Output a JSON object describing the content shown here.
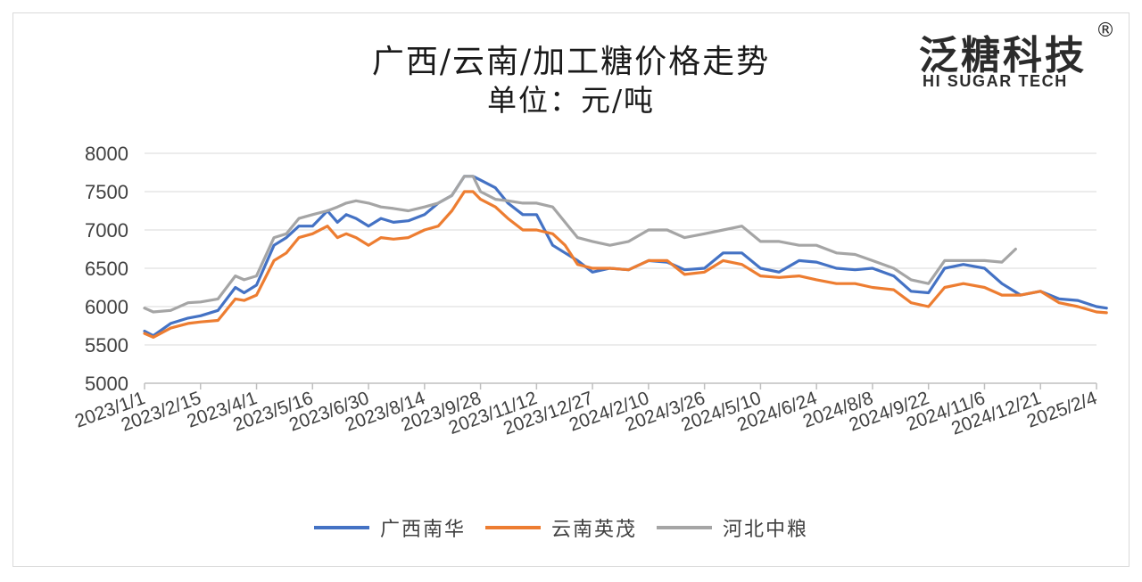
{
  "chart_data": {
    "type": "line",
    "title": "广西/云南/加工糖价格走势",
    "subtitle": "单位：元/吨",
    "xlabel": "",
    "ylabel": "",
    "ylim": [
      5000,
      8000
    ],
    "yticks": [
      5000,
      5500,
      6000,
      6500,
      7000,
      7500,
      8000
    ],
    "x_tick_labels": [
      "2023/1/1",
      "2023/2/15",
      "2023/4/1",
      "2023/5/16",
      "2023/6/30",
      "2023/8/14",
      "2023/9/28",
      "2023/11/12",
      "2023/12/27",
      "2024/2/10",
      "2024/3/26",
      "2024/5/10",
      "2024/6/24",
      "2024/8/8",
      "2024/9/22",
      "2024/11/6",
      "2024/12/21",
      "2025/2/4"
    ],
    "grid": "horizontal",
    "legend_position": "bottom",
    "series": [
      {
        "name": "广西南华",
        "color": "#4472c4",
        "x": [
          "2023/1/1",
          "2023/1/8",
          "2023/1/22",
          "2023/2/5",
          "2023/2/15",
          "2023/3/1",
          "2023/3/15",
          "2023/3/22",
          "2023/4/1",
          "2023/4/15",
          "2023/4/25",
          "2023/5/5",
          "2023/5/16",
          "2023/5/28",
          "2023/6/5",
          "2023/6/12",
          "2023/6/20",
          "2023/6/30",
          "2023/7/10",
          "2023/7/20",
          "2023/8/1",
          "2023/8/14",
          "2023/8/25",
          "2023/9/5",
          "2023/9/15",
          "2023/9/22",
          "2023/9/28",
          "2023/10/10",
          "2023/10/20",
          "2023/11/1",
          "2023/11/12",
          "2023/11/25",
          "2023/12/5",
          "2023/12/15",
          "2023/12/27",
          "2024/1/10",
          "2024/1/25",
          "2024/2/10",
          "2024/2/25",
          "2024/3/10",
          "2024/3/26",
          "2024/4/10",
          "2024/4/25",
          "2024/5/10",
          "2024/5/25",
          "2024/6/10",
          "2024/6/24",
          "2024/7/10",
          "2024/7/25",
          "2024/8/8",
          "2024/8/25",
          "2024/9/8",
          "2024/9/22",
          "2024/10/5",
          "2024/10/20",
          "2024/11/6",
          "2024/11/20",
          "2024/12/5",
          "2024/12/21",
          "2025/1/5",
          "2025/1/20",
          "2025/2/4",
          "2025/2/12"
        ],
        "values": [
          5680,
          5620,
          5780,
          5850,
          5880,
          5950,
          6250,
          6180,
          6280,
          6800,
          6900,
          7050,
          7050,
          7250,
          7100,
          7200,
          7150,
          7050,
          7150,
          7100,
          7120,
          7200,
          7350,
          7450,
          7700,
          7700,
          7650,
          7550,
          7350,
          7200,
          7200,
          6800,
          6700,
          6600,
          6450,
          6500,
          6480,
          6600,
          6580,
          6480,
          6500,
          6700,
          6700,
          6500,
          6450,
          6600,
          6580,
          6500,
          6480,
          6500,
          6400,
          6200,
          6180,
          6500,
          6550,
          6500,
          6300,
          6150,
          6200,
          6100,
          6080,
          6000,
          5980
        ]
      },
      {
        "name": "云南英茂",
        "color": "#ed7d31",
        "x": [
          "2023/1/1",
          "2023/1/8",
          "2023/1/22",
          "2023/2/5",
          "2023/2/15",
          "2023/3/1",
          "2023/3/15",
          "2023/3/22",
          "2023/4/1",
          "2023/4/15",
          "2023/4/25",
          "2023/5/5",
          "2023/5/16",
          "2023/5/28",
          "2023/6/5",
          "2023/6/12",
          "2023/6/20",
          "2023/6/30",
          "2023/7/10",
          "2023/7/20",
          "2023/8/1",
          "2023/8/14",
          "2023/8/25",
          "2023/9/5",
          "2023/9/15",
          "2023/9/22",
          "2023/9/28",
          "2023/10/10",
          "2023/10/20",
          "2023/11/1",
          "2023/11/12",
          "2023/11/25",
          "2023/12/5",
          "2023/12/15",
          "2023/12/27",
          "2024/1/10",
          "2024/1/25",
          "2024/2/10",
          "2024/2/25",
          "2024/3/10",
          "2024/3/26",
          "2024/4/10",
          "2024/4/25",
          "2024/5/10",
          "2024/5/25",
          "2024/6/10",
          "2024/6/24",
          "2024/7/10",
          "2024/7/25",
          "2024/8/8",
          "2024/8/25",
          "2024/9/8",
          "2024/9/22",
          "2024/10/5",
          "2024/10/20",
          "2024/11/6",
          "2024/11/20",
          "2024/12/5",
          "2024/12/21",
          "2025/1/5",
          "2025/1/20",
          "2025/2/4",
          "2025/2/12"
        ],
        "values": [
          5650,
          5600,
          5720,
          5780,
          5800,
          5820,
          6100,
          6080,
          6150,
          6600,
          6700,
          6900,
          6950,
          7050,
          6900,
          6950,
          6900,
          6800,
          6900,
          6880,
          6900,
          7000,
          7050,
          7250,
          7500,
          7500,
          7400,
          7300,
          7150,
          7000,
          7000,
          6950,
          6800,
          6550,
          6500,
          6500,
          6480,
          6600,
          6600,
          6420,
          6450,
          6600,
          6550,
          6400,
          6380,
          6400,
          6350,
          6300,
          6300,
          6250,
          6220,
          6050,
          6000,
          6250,
          6300,
          6250,
          6150,
          6150,
          6200,
          6050,
          6000,
          5930,
          5920
        ]
      },
      {
        "name": "河北中粮",
        "color": "#a5a5a5",
        "x": [
          "2023/1/1",
          "2023/1/8",
          "2023/1/22",
          "2023/2/5",
          "2023/2/15",
          "2023/3/1",
          "2023/3/15",
          "2023/3/22",
          "2023/4/1",
          "2023/4/15",
          "2023/4/25",
          "2023/5/5",
          "2023/5/16",
          "2023/5/28",
          "2023/6/5",
          "2023/6/12",
          "2023/6/20",
          "2023/6/30",
          "2023/7/10",
          "2023/7/20",
          "2023/8/1",
          "2023/8/14",
          "2023/8/25",
          "2023/9/5",
          "2023/9/15",
          "2023/9/22",
          "2023/9/28",
          "2023/10/10",
          "2023/10/20",
          "2023/11/1",
          "2023/11/12",
          "2023/11/25",
          "2023/12/5",
          "2023/12/15",
          "2023/12/27",
          "2024/1/10",
          "2024/1/25",
          "2024/2/10",
          "2024/2/25",
          "2024/3/10",
          "2024/3/26",
          "2024/4/10",
          "2024/4/25",
          "2024/5/10",
          "2024/5/25",
          "2024/6/10",
          "2024/6/24",
          "2024/7/10",
          "2024/7/25",
          "2024/8/8",
          "2024/8/25",
          "2024/9/8",
          "2024/9/22",
          "2024/10/5",
          "2024/10/20",
          "2024/11/6",
          "2024/11/20",
          "2024/12/1"
        ],
        "values": [
          5980,
          5930,
          5950,
          6050,
          6060,
          6100,
          6400,
          6350,
          6400,
          6900,
          6950,
          7150,
          7200,
          7250,
          7300,
          7350,
          7380,
          7350,
          7300,
          7280,
          7250,
          7300,
          7350,
          7450,
          7700,
          7700,
          7500,
          7400,
          7380,
          7350,
          7350,
          7300,
          7100,
          6900,
          6850,
          6800,
          6850,
          7000,
          7000,
          6900,
          6950,
          7000,
          7050,
          6850,
          6850,
          6800,
          6800,
          6700,
          6680,
          6600,
          6500,
          6350,
          6300,
          6600,
          6600,
          6600,
          6580,
          6750
        ]
      }
    ]
  },
  "logo": {
    "cn": "泛糖科技",
    "en": "HI SUGAR TECH",
    "reg": "®"
  }
}
